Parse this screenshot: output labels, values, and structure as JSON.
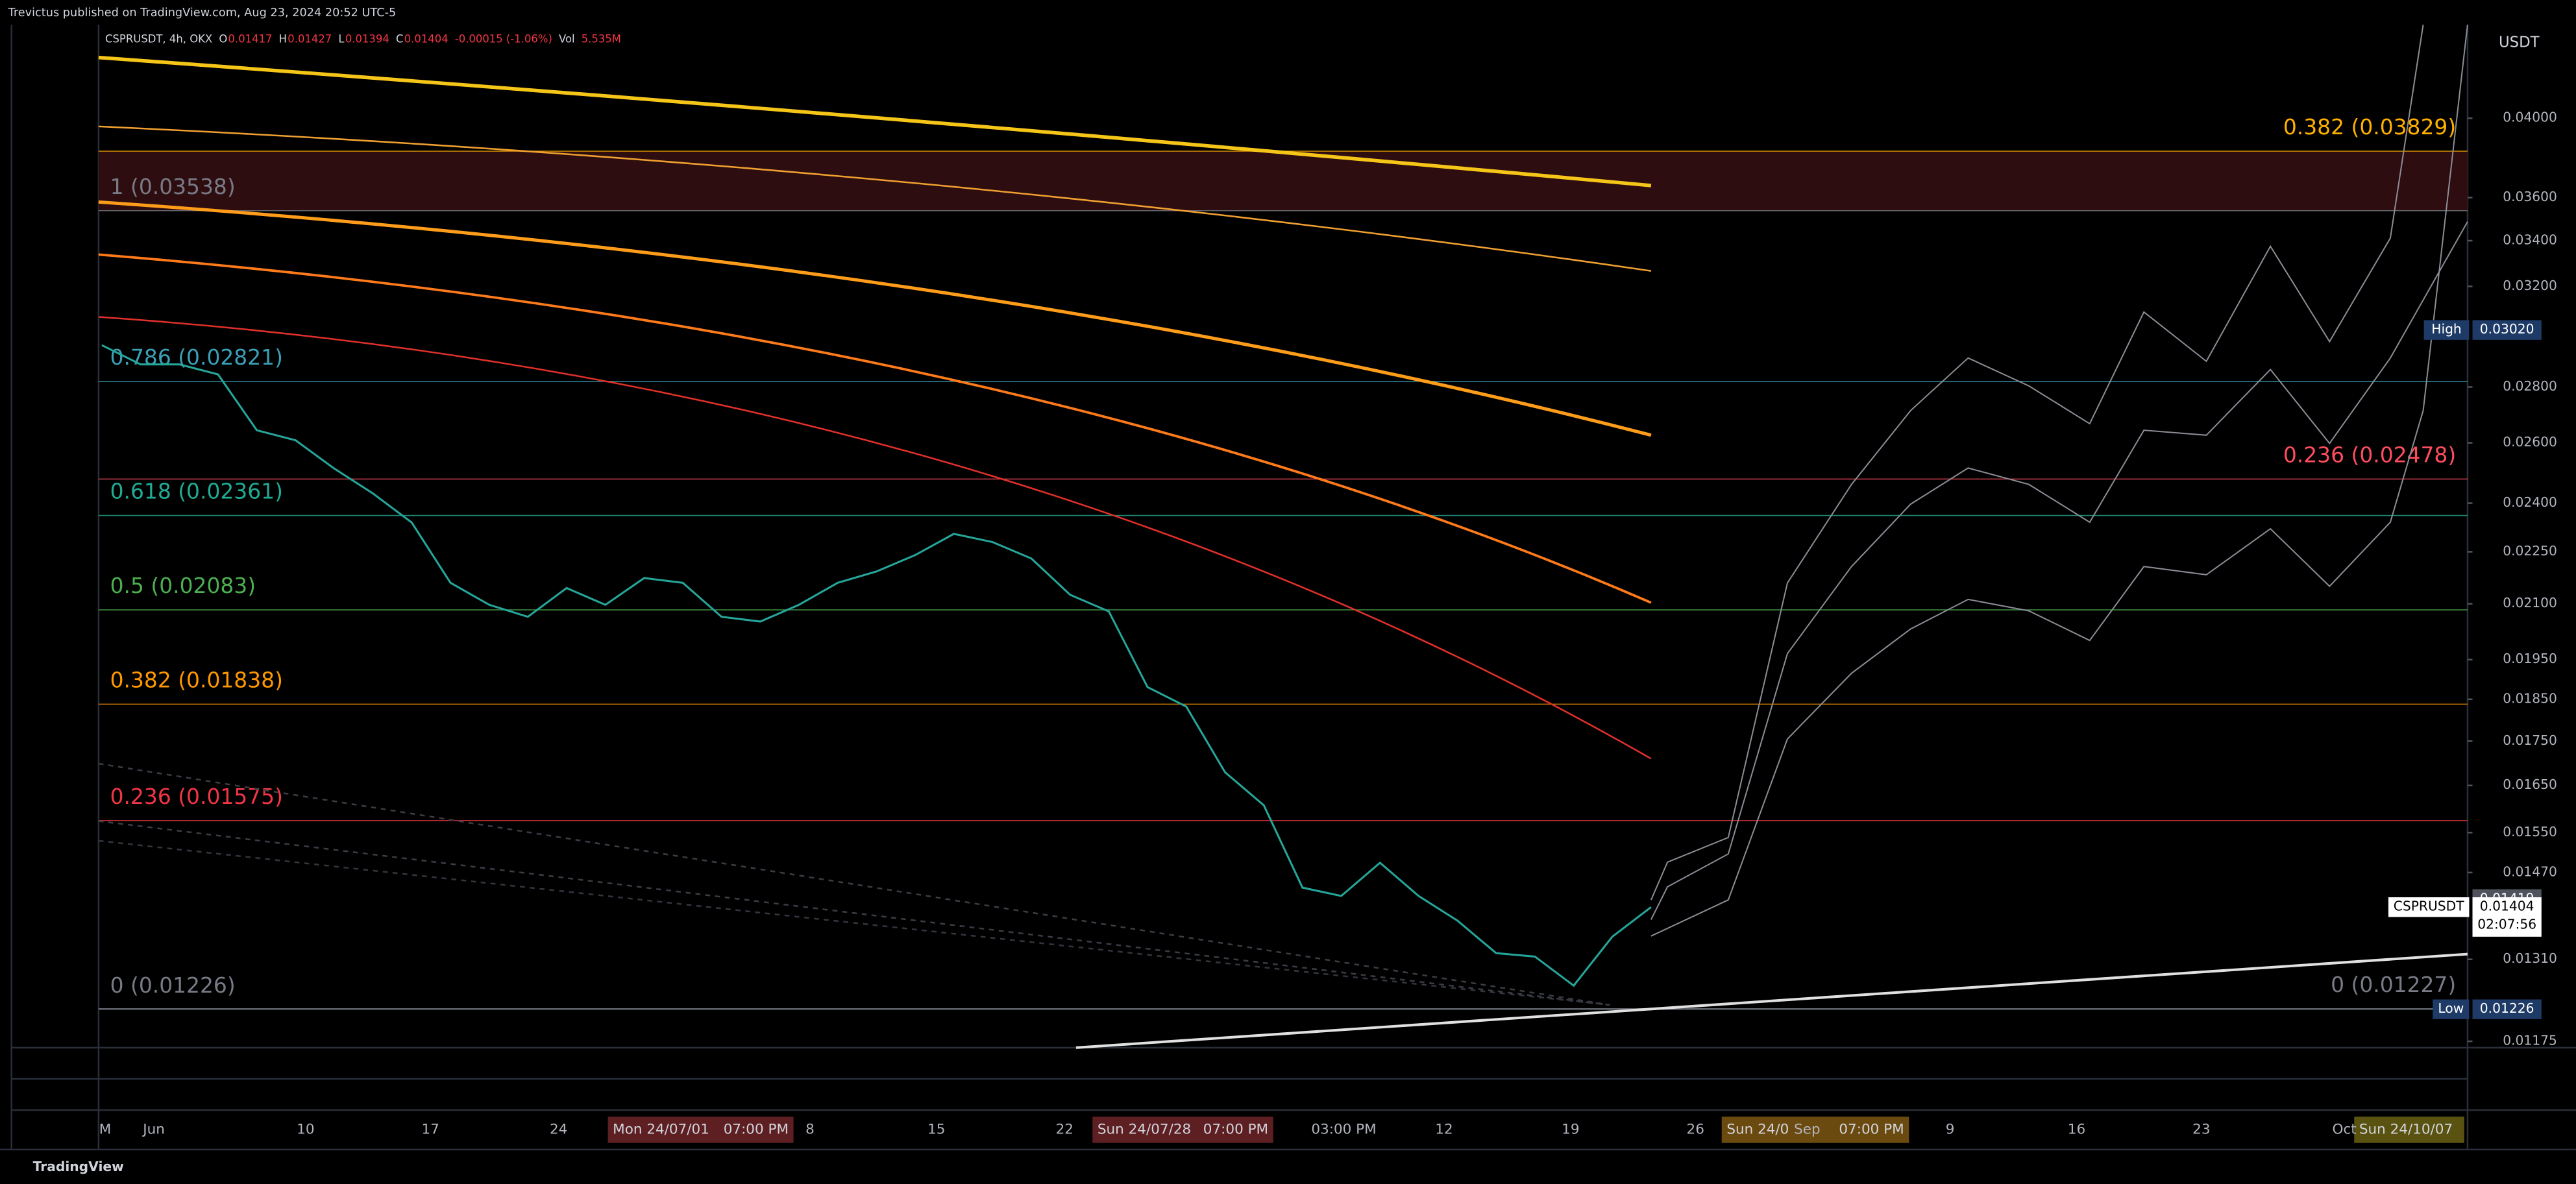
{
  "header": {
    "publisher_line": "Trevictus published on TradingView.com, Aug 23, 2024 20:52 UTC-5"
  },
  "legend": [
    {
      "text": "CSPRUSDT, 4h, OKX",
      "color": "#d1d4dc"
    },
    {
      "text": "O",
      "color": "#d1d4dc"
    },
    {
      "text": "0.01417",
      "color": "#f23645"
    },
    {
      "text": "H",
      "color": "#d1d4dc"
    },
    {
      "text": "0.01427",
      "color": "#f23645"
    },
    {
      "text": "L",
      "color": "#d1d4dc"
    },
    {
      "text": "0.01394",
      "color": "#f23645"
    },
    {
      "text": "C",
      "color": "#d1d4dc"
    },
    {
      "text": "0.01404",
      "color": "#f23645"
    },
    {
      "text": "-0.00015 (-1.06%)",
      "color": "#f23645"
    },
    {
      "text": "Vol",
      "color": "#d1d4dc"
    },
    {
      "text": "5.535M",
      "color": "#f23645"
    }
  ],
  "price_axis": {
    "currency": "USDT",
    "log": true,
    "range": [
      0.01135,
      0.04529
    ],
    "ticks": [
      {
        "value": 0.04,
        "label": "0.04000"
      },
      {
        "value": 0.036,
        "label": "0.03600"
      },
      {
        "value": 0.034,
        "label": "0.03400"
      },
      {
        "value": 0.032,
        "label": "0.03200"
      },
      {
        "value": 0.028,
        "label": "0.02800"
      },
      {
        "value": 0.026,
        "label": "0.02600"
      },
      {
        "value": 0.024,
        "label": "0.02400"
      },
      {
        "value": 0.0225,
        "label": "0.02250"
      },
      {
        "value": 0.021,
        "label": "0.02100"
      },
      {
        "value": 0.0195,
        "label": "0.01950"
      },
      {
        "value": 0.0185,
        "label": "0.01850"
      },
      {
        "value": 0.0175,
        "label": "0.01750"
      },
      {
        "value": 0.0165,
        "label": "0.01650"
      },
      {
        "value": 0.0155,
        "label": "0.01550"
      },
      {
        "value": 0.0147,
        "label": "0.01470"
      },
      {
        "value": 0.0131,
        "label": "0.01310"
      },
      {
        "value": 0.01175,
        "label": "0.01175"
      }
    ],
    "markers": [
      {
        "name": "High",
        "value": 0.0302,
        "label": "0.03020",
        "color": "#1e3a66"
      },
      {
        "value": 0.01419,
        "label": "0.01419",
        "color": "#50535e"
      },
      {
        "name": "CSPRUSDT",
        "value": 0.01404,
        "label": "0.01404",
        "countdown": "02:07:56",
        "color": "#ffffff"
      },
      {
        "name": "Low",
        "value": 0.01226,
        "label": "0.01226",
        "color": "#1e3a66"
      }
    ]
  },
  "fib_left": [
    {
      "label": "1 (0.03538)",
      "price": 0.03538,
      "color": "#787b86"
    },
    {
      "label": "0.786 (0.02821)",
      "price": 0.02821,
      "color": "#3ba0b8"
    },
    {
      "label": "0.618 (0.02361)",
      "price": 0.02361,
      "color": "#22ab94"
    },
    {
      "label": "0.5 (0.02083)",
      "price": 0.02083,
      "color": "#4caf50"
    },
    {
      "label": "0.382 (0.01838)",
      "price": 0.01838,
      "color": "#ff9800"
    },
    {
      "label": "0.236 (0.01575)",
      "price": 0.01575,
      "color": "#f23645"
    },
    {
      "label": "0 (0.01226)",
      "price": 0.01226,
      "color": "#787b86"
    }
  ],
  "fib_right": [
    {
      "label": "0.382 (0.03829)",
      "price": 0.03829,
      "color": "#ffb000"
    },
    {
      "label": "0.236 (0.02478)",
      "price": 0.02478,
      "color": "#ff4d5e"
    },
    {
      "label": "0 (0.01227)",
      "price": 0.01227,
      "color": "#787b86"
    }
  ],
  "price_path": [
    0.0296,
    0.02885,
    0.02885,
    0.02847,
    0.02644,
    0.02609,
    0.02513,
    0.02431,
    0.02339,
    0.02159,
    0.02097,
    0.02064,
    0.02144,
    0.02097,
    0.02173,
    0.02159,
    0.02064,
    0.02051,
    0.02097,
    0.02159,
    0.02192,
    0.0224,
    0.02304,
    0.02279,
    0.0223,
    0.02125,
    0.02079,
    0.0188,
    0.01832,
    0.01679,
    0.01607,
    0.01441,
    0.01425,
    0.01489,
    0.01425,
    0.01379,
    0.01321,
    0.01315,
    0.01265,
    0.0135,
    0.01404
  ],
  "time_axis": {
    "labels": [
      "M",
      "Jun",
      "10",
      "17",
      "24",
      "8",
      "15",
      "22",
      "03:00 PM",
      "12",
      "19",
      "26",
      "Sep",
      "9",
      "16",
      "23",
      "Oct"
    ],
    "highlights": [
      {
        "date": "Mon 24/07/01",
        "time": "07:00 PM",
        "color": "#5d1f22"
      },
      {
        "date": "Sun 24/07/28",
        "time": "07:00 PM",
        "color": "#5d1f22"
      },
      {
        "date": "Sun 24/0",
        "time": "07:00 PM",
        "color": "#6b4a10"
      },
      {
        "date": "Sun 24/10/07",
        "color": "#5a5210"
      }
    ]
  },
  "footer": {
    "brand": "TradingView"
  }
}
